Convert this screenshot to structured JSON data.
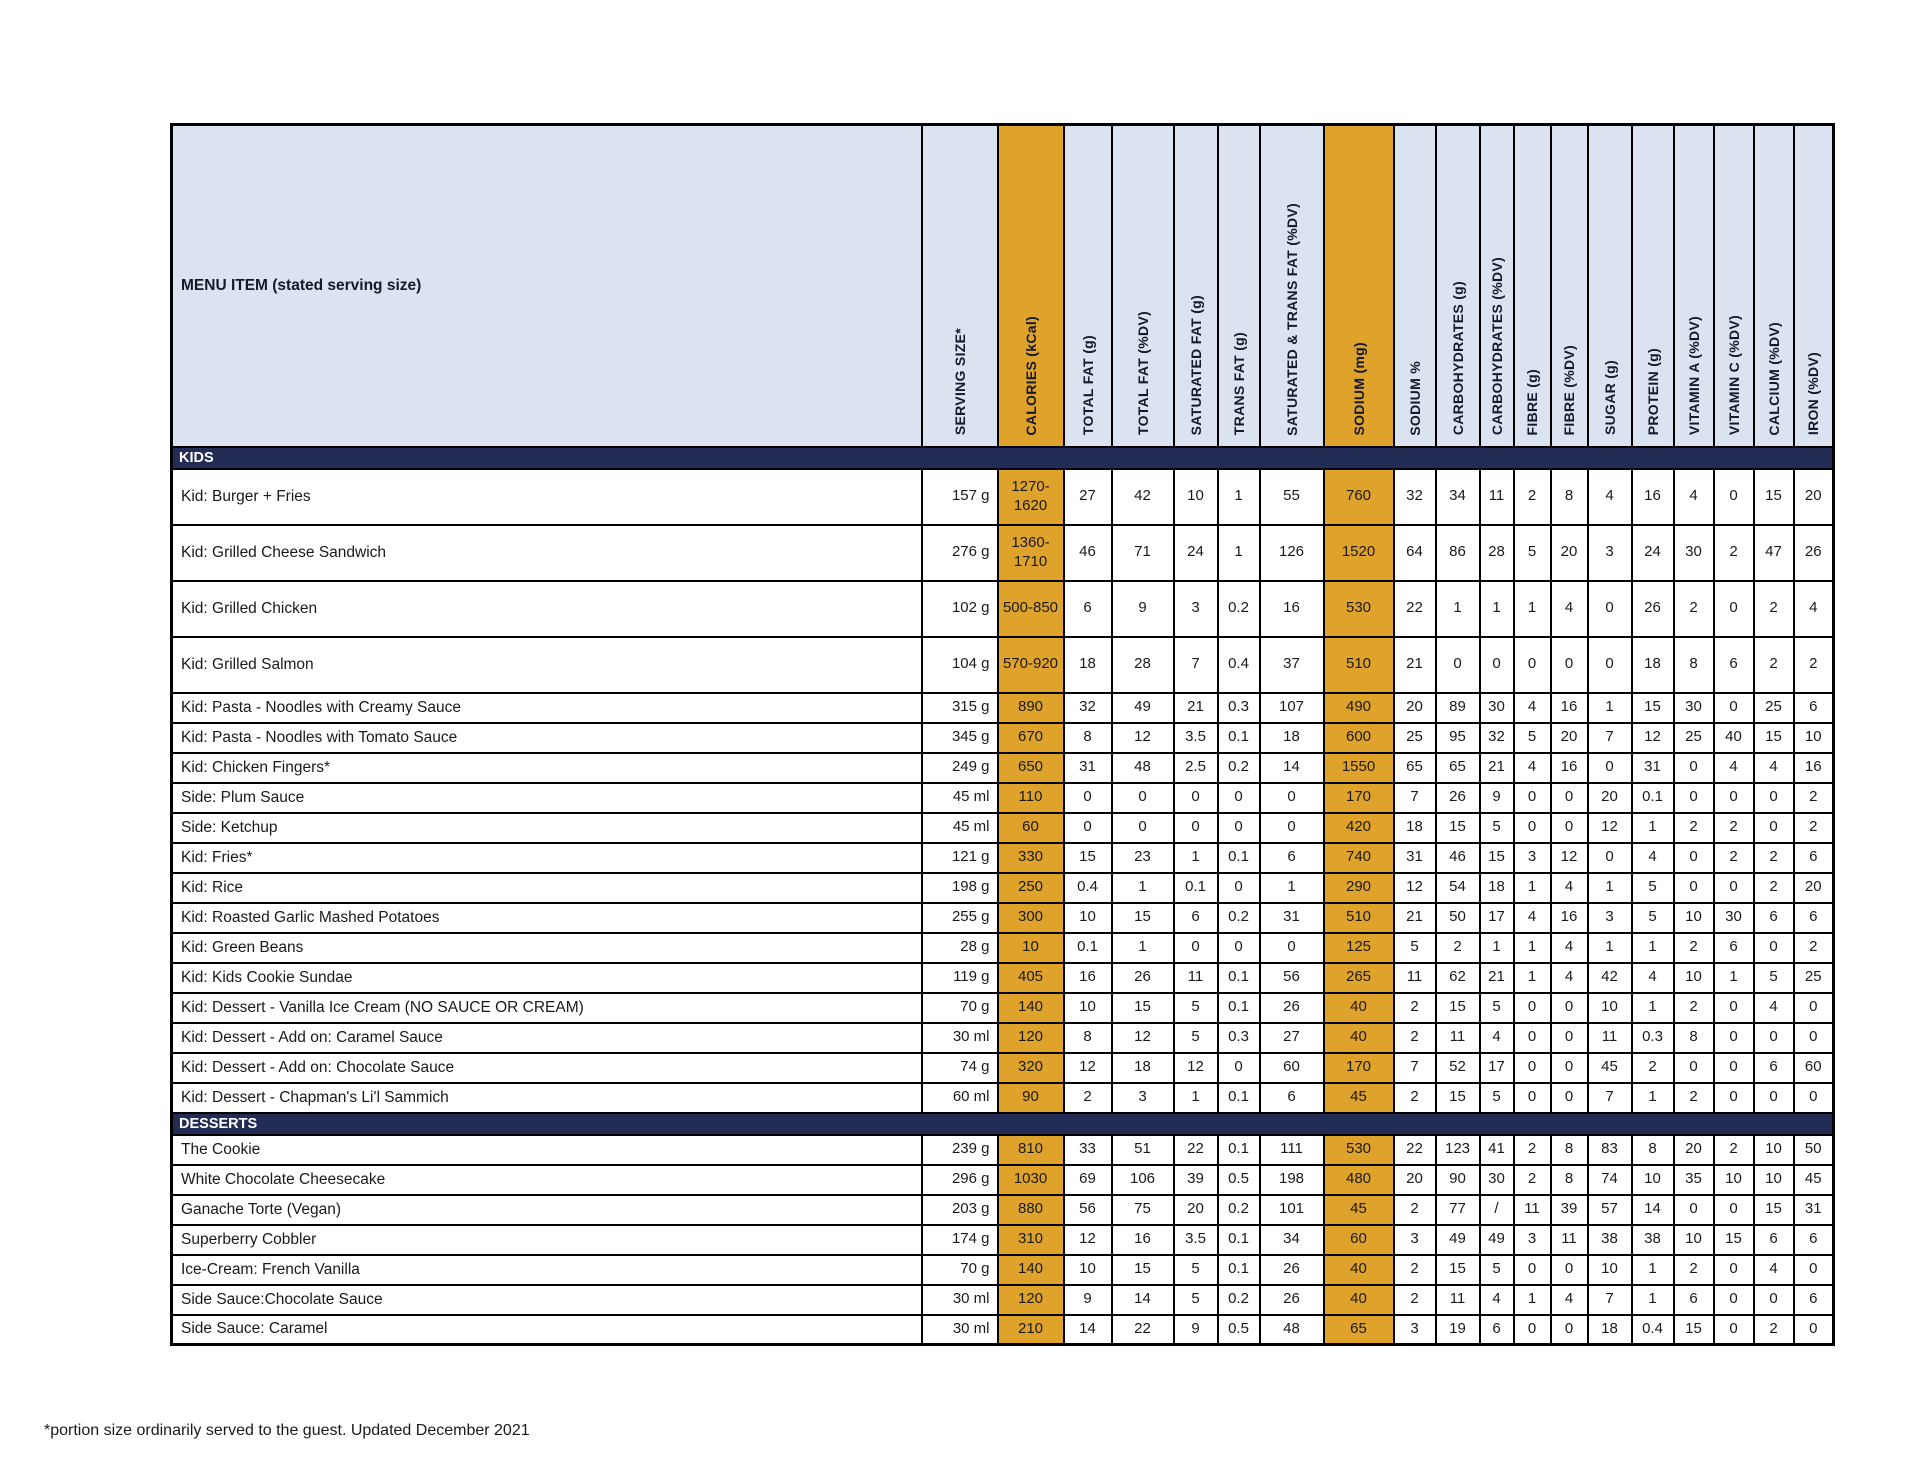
{
  "colors": {
    "highlight": "#dfa32b",
    "header_bg": "#dce3f0",
    "header_text": "#14192e",
    "section_bg": "#232c55",
    "section_text": "#ffffff",
    "border": "#000000",
    "text": "#1a1a1a"
  },
  "table": {
    "menu_item_header": "MENU ITEM (stated serving size)",
    "columns": [
      {
        "label": "SERVING SIZE*"
      },
      {
        "label": "CALORIES (kCal)",
        "highlight": true
      },
      {
        "label": "TOTAL FAT (g)"
      },
      {
        "label": "TOTAL FAT (%DV)"
      },
      {
        "label": "SATURATED FAT (g)"
      },
      {
        "label": "TRANS FAT (g)"
      },
      {
        "label": "SATURATED & TRANS FAT (%DV)"
      },
      {
        "label": "SODIUM (mg)",
        "highlight": true
      },
      {
        "label": "SODIUM %"
      },
      {
        "label": "CARBOHYDRATES (g)"
      },
      {
        "label": "CARBOHYDRATES (%DV)"
      },
      {
        "label": "FIBRE (g)"
      },
      {
        "label": "FIBRE (%DV)"
      },
      {
        "label": "SUGAR (g)"
      },
      {
        "label": "PROTEIN (g)"
      },
      {
        "label": "VITAMIN A (%DV)"
      },
      {
        "label": "VITAMIN C (%DV)"
      },
      {
        "label": "CALCIUM (%DV)"
      },
      {
        "label": "IRON (%DV)"
      }
    ],
    "sections": [
      {
        "title": "KIDS",
        "rows": [
          {
            "item": "Kid: Burger + Fries",
            "tall": true,
            "values": [
              "157 g",
              "1270-1620",
              "27",
              "42",
              "10",
              "1",
              "55",
              "760",
              "32",
              "34",
              "11",
              "2",
              "8",
              "4",
              "16",
              "4",
              "0",
              "15",
              "20"
            ]
          },
          {
            "item": "Kid: Grilled Cheese Sandwich",
            "tall": true,
            "values": [
              "276 g",
              "1360-1710",
              "46",
              "71",
              "24",
              "1",
              "126",
              "1520",
              "64",
              "86",
              "28",
              "5",
              "20",
              "3",
              "24",
              "30",
              "2",
              "47",
              "26"
            ]
          },
          {
            "item": "Kid: Grilled Chicken",
            "tall": true,
            "values": [
              "102 g",
              "500-850",
              "6",
              "9",
              "3",
              "0.2",
              "16",
              "530",
              "22",
              "1",
              "1",
              "1",
              "4",
              "0",
              "26",
              "2",
              "0",
              "2",
              "4"
            ]
          },
          {
            "item": "Kid: Grilled Salmon",
            "tall": true,
            "values": [
              "104 g",
              "570-920",
              "18",
              "28",
              "7",
              "0.4",
              "37",
              "510",
              "21",
              "0",
              "0",
              "0",
              "0",
              "0",
              "18",
              "8",
              "6",
              "2",
              "2"
            ]
          },
          {
            "item": "Kid: Pasta - Noodles with Creamy Sauce",
            "tall": false,
            "values": [
              "315 g",
              "890",
              "32",
              "49",
              "21",
              "0.3",
              "107",
              "490",
              "20",
              "89",
              "30",
              "4",
              "16",
              "1",
              "15",
              "30",
              "0",
              "25",
              "6"
            ]
          },
          {
            "item": "Kid: Pasta - Noodles with Tomato Sauce",
            "tall": false,
            "values": [
              "345 g",
              "670",
              "8",
              "12",
              "3.5",
              "0.1",
              "18",
              "600",
              "25",
              "95",
              "32",
              "5",
              "20",
              "7",
              "12",
              "25",
              "40",
              "15",
              "10"
            ]
          },
          {
            "item": "Kid: Chicken Fingers*",
            "tall": false,
            "values": [
              "249 g",
              "650",
              "31",
              "48",
              "2.5",
              "0.2",
              "14",
              "1550",
              "65",
              "65",
              "21",
              "4",
              "16",
              "0",
              "31",
              "0",
              "4",
              "4",
              "16"
            ]
          },
          {
            "item": "Side: Plum Sauce",
            "tall": false,
            "values": [
              "45 ml",
              "110",
              "0",
              "0",
              "0",
              "0",
              "0",
              "170",
              "7",
              "26",
              "9",
              "0",
              "0",
              "20",
              "0.1",
              "0",
              "0",
              "0",
              "2"
            ]
          },
          {
            "item": "Side: Ketchup",
            "tall": false,
            "values": [
              "45 ml",
              "60",
              "0",
              "0",
              "0",
              "0",
              "0",
              "420",
              "18",
              "15",
              "5",
              "0",
              "0",
              "12",
              "1",
              "2",
              "2",
              "0",
              "2"
            ]
          },
          {
            "item": "Kid: Fries*",
            "tall": false,
            "values": [
              "121 g",
              "330",
              "15",
              "23",
              "1",
              "0.1",
              "6",
              "740",
              "31",
              "46",
              "15",
              "3",
              "12",
              "0",
              "4",
              "0",
              "2",
              "2",
              "6"
            ]
          },
          {
            "item": "Kid: Rice",
            "tall": false,
            "values": [
              "198 g",
              "250",
              "0.4",
              "1",
              "0.1",
              "0",
              "1",
              "290",
              "12",
              "54",
              "18",
              "1",
              "4",
              "1",
              "5",
              "0",
              "0",
              "2",
              "20"
            ]
          },
          {
            "item": "Kid: Roasted Garlic Mashed Potatoes",
            "tall": false,
            "values": [
              "255 g",
              "300",
              "10",
              "15",
              "6",
              "0.2",
              "31",
              "510",
              "21",
              "50",
              "17",
              "4",
              "16",
              "3",
              "5",
              "10",
              "30",
              "6",
              "6"
            ]
          },
          {
            "item": "Kid: Green Beans",
            "tall": false,
            "values": [
              "28 g",
              "10",
              "0.1",
              "1",
              "0",
              "0",
              "0",
              "125",
              "5",
              "2",
              "1",
              "1",
              "4",
              "1",
              "1",
              "2",
              "6",
              "0",
              "2"
            ]
          },
          {
            "item": "Kid: Kids Cookie Sundae",
            "tall": false,
            "values": [
              "119 g",
              "405",
              "16",
              "26",
              "11",
              "0.1",
              "56",
              "265",
              "11",
              "62",
              "21",
              "1",
              "4",
              "42",
              "4",
              "10",
              "1",
              "5",
              "25"
            ]
          },
          {
            "item": "Kid: Dessert  - Vanilla Ice Cream (NO SAUCE OR CREAM)",
            "tall": false,
            "values": [
              "70 g",
              "140",
              "10",
              "15",
              "5",
              "0.1",
              "26",
              "40",
              "2",
              "15",
              "5",
              "0",
              "0",
              "10",
              "1",
              "2",
              "0",
              "4",
              "0"
            ]
          },
          {
            "item": "Kid: Dessert  - Add on: Caramel Sauce",
            "tall": false,
            "values": [
              "30 ml",
              "120",
              "8",
              "12",
              "5",
              "0.3",
              "27",
              "40",
              "2",
              "11",
              "4",
              "0",
              "0",
              "11",
              "0.3",
              "8",
              "0",
              "0",
              "0"
            ]
          },
          {
            "item": "Kid: Dessert  - Add on: Chocolate Sauce",
            "tall": false,
            "values": [
              "74 g",
              "320",
              "12",
              "18",
              "12",
              "0",
              "60",
              "170",
              "7",
              "52",
              "17",
              "0",
              "0",
              "45",
              "2",
              "0",
              "0",
              "6",
              "60"
            ]
          },
          {
            "item": "Kid: Dessert  - Chapman's Li'l  Sammich",
            "tall": false,
            "values": [
              "60 ml",
              "90",
              "2",
              "3",
              "1",
              "0.1",
              "6",
              "45",
              "2",
              "15",
              "5",
              "0",
              "0",
              "7",
              "1",
              "2",
              "0",
              "0",
              "0"
            ]
          }
        ]
      },
      {
        "title": "DESSERTS",
        "rows": [
          {
            "item": "The Cookie",
            "tall": false,
            "values": [
              "239 g",
              "810",
              "33",
              "51",
              "22",
              "0.1",
              "111",
              "530",
              "22",
              "123",
              "41",
              "2",
              "8",
              "83",
              "8",
              "20",
              "2",
              "10",
              "50"
            ]
          },
          {
            "item": "White Chocolate Cheesecake",
            "tall": false,
            "values": [
              "296 g",
              "1030",
              "69",
              "106",
              "39",
              "0.5",
              "198",
              "480",
              "20",
              "90",
              "30",
              "2",
              "8",
              "74",
              "10",
              "35",
              "10",
              "10",
              "45"
            ]
          },
          {
            "item": "Ganache Torte (Vegan)",
            "tall": false,
            "values": [
              "203 g",
              "880",
              "56",
              "75",
              "20",
              "0.2",
              "101",
              "45",
              "2",
              "77",
              "/",
              "11",
              "39",
              "57",
              "14",
              "0",
              "0",
              "15",
              "31"
            ]
          },
          {
            "item": "Superberry Cobbler",
            "tall": false,
            "values": [
              "174 g",
              "310",
              "12",
              "16",
              "3.5",
              "0.1",
              "34",
              "60",
              "3",
              "49",
              "49",
              "3",
              "11",
              "38",
              "38",
              "10",
              "15",
              "6",
              "6"
            ]
          },
          {
            "item": "Ice-Cream: French Vanilla",
            "tall": false,
            "values": [
              "70 g",
              "140",
              "10",
              "15",
              "5",
              "0.1",
              "26",
              "40",
              "2",
              "15",
              "5",
              "0",
              "0",
              "10",
              "1",
              "2",
              "0",
              "4",
              "0"
            ]
          },
          {
            "item": "Side Sauce:Chocolate Sauce",
            "tall": false,
            "values": [
              "30 ml",
              "120",
              "9",
              "14",
              "5",
              "0.2",
              "26",
              "40",
              "2",
              "11",
              "4",
              "1",
              "4",
              "7",
              "1",
              "6",
              "0",
              "0",
              "6"
            ]
          },
          {
            "item": "Side Sauce: Caramel",
            "tall": false,
            "values": [
              "30 ml",
              "210",
              "14",
              "22",
              "9",
              "0.5",
              "48",
              "65",
              "3",
              "19",
              "6",
              "0",
              "0",
              "18",
              "0.4",
              "15",
              "0",
              "2",
              "0"
            ]
          }
        ]
      }
    ]
  },
  "footer": {
    "note": "*portion size ordinarily served to the guest. Updated December 2021"
  }
}
